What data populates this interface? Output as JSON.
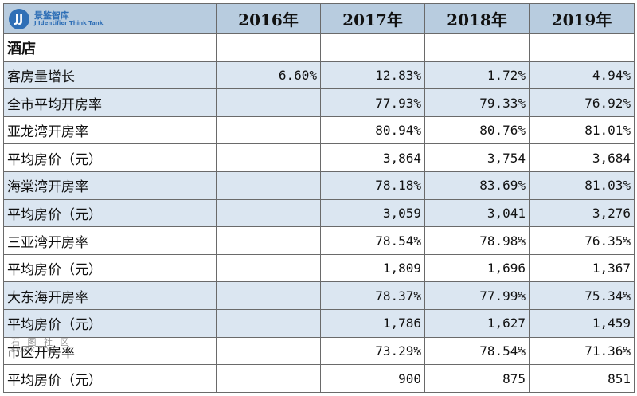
{
  "logo": {
    "mark": "JJ",
    "name_cn": "景鉴智库",
    "name_en": "J Identifier Think Tank"
  },
  "header": {
    "years": [
      "2016年",
      "2017年",
      "2018年",
      "2019年"
    ]
  },
  "section_label": "酒店",
  "rows": [
    {
      "label": "客房量增长",
      "values": [
        "6.60%",
        "12.83%",
        "1.72%",
        "4.94%"
      ],
      "shaded": true
    },
    {
      "label": "全市平均开房率",
      "values": [
        "",
        "77.93%",
        "79.33%",
        "76.92%"
      ],
      "shaded": true
    },
    {
      "label": "亚龙湾开房率",
      "values": [
        "",
        "80.94%",
        "80.76%",
        "81.01%"
      ],
      "shaded": false
    },
    {
      "label": "平均房价（元）",
      "values": [
        "",
        "3,864",
        "3,754",
        "3,684"
      ],
      "shaded": false
    },
    {
      "label": "海棠湾开房率",
      "values": [
        "",
        "78.18%",
        "83.69%",
        "81.03%"
      ],
      "shaded": true
    },
    {
      "label": "平均房价（元）",
      "values": [
        "",
        "3,059",
        "3,041",
        "3,276"
      ],
      "shaded": true
    },
    {
      "label": "三亚湾开房率",
      "values": [
        "",
        "78.54%",
        "78.98%",
        "76.35%"
      ],
      "shaded": false
    },
    {
      "label": "平均房价（元）",
      "values": [
        "",
        "1,809",
        "1,696",
        "1,367"
      ],
      "shaded": false
    },
    {
      "label": "大东海开房率",
      "values": [
        "",
        "78.37%",
        "77.99%",
        "75.34%"
      ],
      "shaded": true
    },
    {
      "label": "平均房价（元）",
      "values": [
        "",
        "1,786",
        "1,627",
        "1,459"
      ],
      "shaded": true
    },
    {
      "label": "市区开房率",
      "values": [
        "",
        "73.29%",
        "78.54%",
        "71.36%"
      ],
      "shaded": false
    },
    {
      "label": "平均房价（元）",
      "values": [
        "",
        "900",
        "875",
        "851"
      ],
      "shaded": false
    }
  ],
  "watermark": {
    "cn": "石 图 社 区",
    "en": "SPARK.COM"
  },
  "chart_data": {
    "type": "table",
    "columns": [
      "2016年",
      "2017年",
      "2018年",
      "2019年"
    ],
    "section": "酒店",
    "rows": [
      {
        "label": "客房量增长",
        "values": [
          "6.60%",
          "12.83%",
          "1.72%",
          "4.94%"
        ]
      },
      {
        "label": "全市平均开房率",
        "values": [
          "",
          "77.93%",
          "79.33%",
          "76.92%"
        ]
      },
      {
        "label": "亚龙湾开房率",
        "values": [
          "",
          "80.94%",
          "80.76%",
          "81.01%"
        ]
      },
      {
        "label": "平均房价（元）",
        "values": [
          "",
          "3,864",
          "3,754",
          "3,684"
        ]
      },
      {
        "label": "海棠湾开房率",
        "values": [
          "",
          "78.18%",
          "83.69%",
          "81.03%"
        ]
      },
      {
        "label": "平均房价（元）",
        "values": [
          "",
          "3,059",
          "3,041",
          "3,276"
        ]
      },
      {
        "label": "三亚湾开房率",
        "values": [
          "",
          "78.54%",
          "78.98%",
          "76.35%"
        ]
      },
      {
        "label": "平均房价（元）",
        "values": [
          "",
          "1,809",
          "1,696",
          "1,367"
        ]
      },
      {
        "label": "大东海开房率",
        "values": [
          "",
          "78.37%",
          "77.99%",
          "75.34%"
        ]
      },
      {
        "label": "平均房价（元）",
        "values": [
          "",
          "1,786",
          "1,627",
          "1,459"
        ]
      },
      {
        "label": "市区开房率",
        "values": [
          "",
          "73.29%",
          "78.54%",
          "71.36%"
        ]
      },
      {
        "label": "平均房价（元）",
        "values": [
          "",
          "900",
          "875",
          "851"
        ]
      }
    ]
  }
}
